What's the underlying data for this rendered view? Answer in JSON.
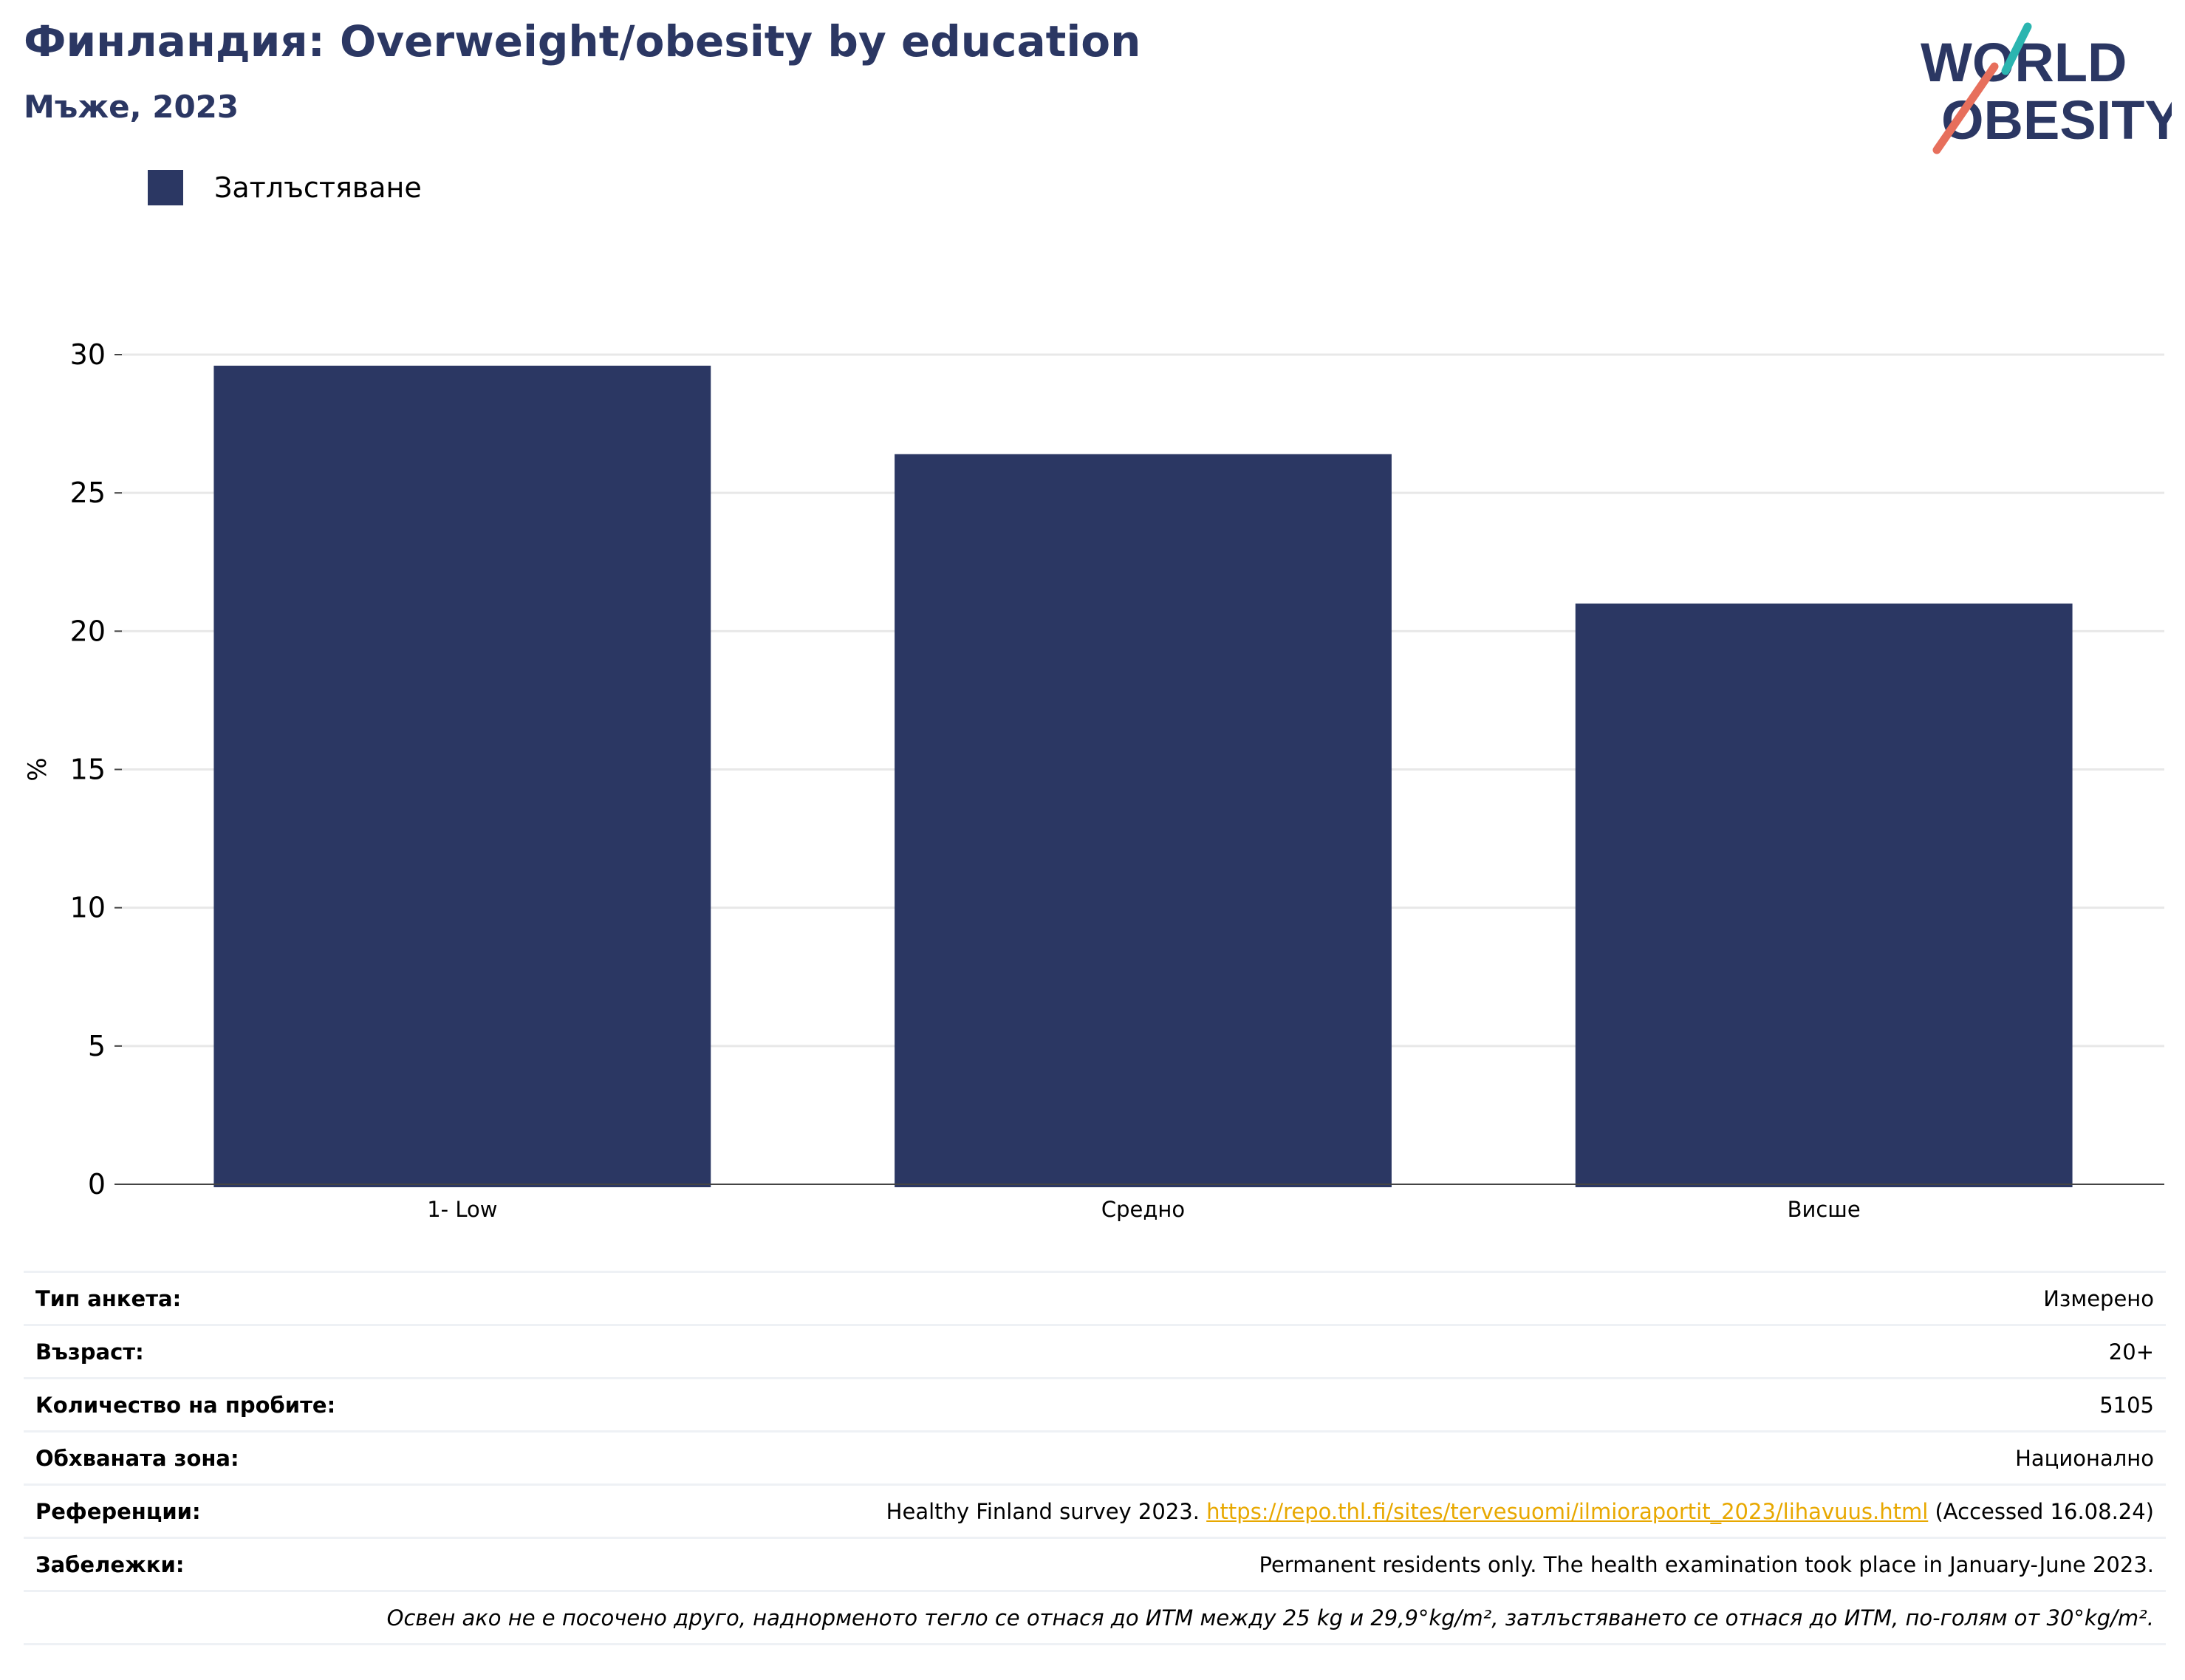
{
  "header": {
    "title": "Финландия: Overweight/obesity by education",
    "subtitle": "Мъже, 2023"
  },
  "logo": {
    "line1": "WORLD",
    "line2": "OBESITY",
    "colors": {
      "text": "#2b3763",
      "teal": "#2bb5b0",
      "coral": "#e76f5c"
    }
  },
  "chart_data": {
    "type": "bar",
    "categories": [
      "1- Low",
      "Средно",
      "Висше"
    ],
    "series": [
      {
        "name": "Затлъстяване",
        "color": "#2b3763",
        "values": [
          29.6,
          26.4,
          21.0
        ]
      }
    ],
    "ylabel": "%",
    "ylim": [
      0,
      30
    ],
    "yticks": [
      0,
      5,
      10,
      15,
      20,
      25,
      30
    ],
    "grid": true,
    "legend_position": "top-left"
  },
  "info": {
    "survey_type": {
      "label": "Тип анкета:",
      "value": "Измерено"
    },
    "age": {
      "label": "Възраст:",
      "value": "20+"
    },
    "sample_size": {
      "label": "Количество на пробите:",
      "value": "5105"
    },
    "area_covered": {
      "label": "Обхваната зона:",
      "value": "Национално"
    },
    "references": {
      "label": "Референции:",
      "prefix": "Healthy Finland survey 2023. ",
      "link": "https://repo.thl.fi/sites/tervesuomi/ilmioraportit_2023/lihavuus.html",
      "suffix": " (Accessed 16.08.24)"
    },
    "notes": {
      "label": "Забележки:",
      "value": "Permanent residents only. The health examination took place in January-June 2023."
    },
    "definition": "Освен ако не е посочено друго, наднорменото тегло се отнася до ИТМ между 25 kg и 29,9°kg/m², затлъстяването се отнася до ИТМ, по-голям от 30°kg/m²."
  }
}
